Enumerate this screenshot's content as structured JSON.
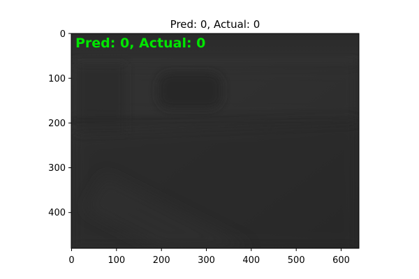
{
  "figure": {
    "title": "Pred: 0, Actual: 0",
    "overlay_text": "Pred: 0, Actual: 0",
    "overlay_color": "#00e600"
  },
  "axes": {
    "x_ticks": [
      "0",
      "100",
      "200",
      "300",
      "400",
      "500",
      "600"
    ],
    "y_ticks": [
      "0",
      "100",
      "200",
      "300",
      "400"
    ],
    "x_range": [
      0,
      640
    ],
    "y_range": [
      0,
      480
    ],
    "y_inverted": true
  },
  "image": {
    "description_style": "dark grayscale camera frame",
    "base_color": "#2e2e2e"
  }
}
